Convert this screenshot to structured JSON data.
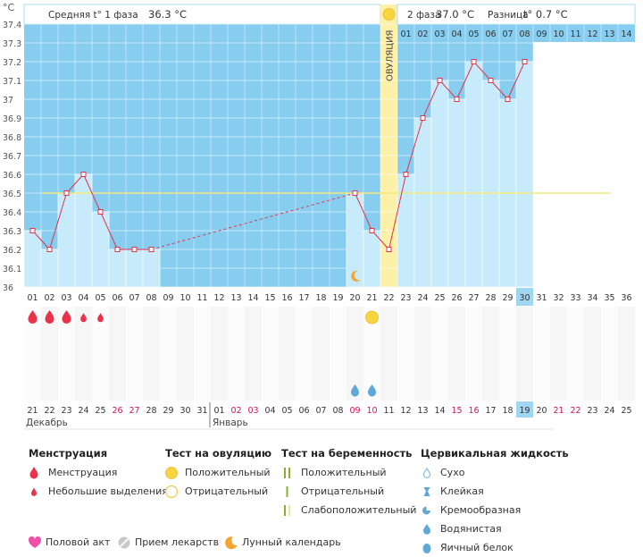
{
  "chart_data": {
    "type": "line",
    "y_unit": "°C",
    "ylim": [
      36,
      37.4
    ],
    "y_ticks": [
      "37.4",
      "37.3",
      "37.2",
      "37.1",
      "37",
      "36.9",
      "36.8",
      "36.7",
      "36.6",
      "36.5",
      "36.4",
      "36.3",
      "36.2",
      "36.1",
      "36"
    ],
    "phase1_label": "Средняя t° 1 фаза",
    "phase1_value": "36.3 °C",
    "phase2_label": "2 фаза",
    "phase2_value": "37.0 °C",
    "diff_label": "Разница",
    "diff_value": "t° 0.7 °C",
    "ovulation_label": "ОВУЛЯЦИЯ",
    "ovulation_day": 22,
    "cover_line": 36.5,
    "post_ov_days": [
      "01",
      "02",
      "03",
      "04",
      "05",
      "06",
      "07",
      "08",
      "09",
      "10",
      "11",
      "12",
      "13",
      "14"
    ],
    "cycle_days": [
      "01",
      "02",
      "03",
      "04",
      "05",
      "06",
      "07",
      "08",
      "09",
      "10",
      "11",
      "12",
      "13",
      "14",
      "15",
      "16",
      "17",
      "18",
      "19",
      "20",
      "21",
      "22",
      "23",
      "24",
      "25",
      "26",
      "27",
      "28",
      "29",
      "30",
      "31",
      "32",
      "33",
      "34",
      "35",
      "36"
    ],
    "highlight_cycle_day": "30",
    "temperatures": [
      {
        "day": 1,
        "value": 36.3
      },
      {
        "day": 2,
        "value": 36.2
      },
      {
        "day": 3,
        "value": 36.5
      },
      {
        "day": 4,
        "value": 36.6
      },
      {
        "day": 5,
        "value": 36.4
      },
      {
        "day": 6,
        "value": 36.2
      },
      {
        "day": 7,
        "value": 36.2
      },
      {
        "day": 8,
        "value": 36.2
      },
      {
        "day": 20,
        "value": 36.5
      },
      {
        "day": 21,
        "value": 36.3
      },
      {
        "day": 22,
        "value": 36.2
      },
      {
        "day": 23,
        "value": 36.6
      },
      {
        "day": 24,
        "value": 36.9
      },
      {
        "day": 25,
        "value": 37.1
      },
      {
        "day": 26,
        "value": 37.0
      },
      {
        "day": 27,
        "value": 37.2
      },
      {
        "day": 28,
        "value": 37.1
      },
      {
        "day": 29,
        "value": 37.0
      },
      {
        "day": 30,
        "value": 37.2
      }
    ],
    "moon_days": [
      20
    ],
    "menstruation": [
      {
        "day": 1,
        "kind": "heavy"
      },
      {
        "day": 2,
        "kind": "heavy"
      },
      {
        "day": 3,
        "kind": "heavy"
      },
      {
        "day": 4,
        "kind": "light"
      },
      {
        "day": 5,
        "kind": "light"
      }
    ],
    "ovulation_test_positive_days": [
      21
    ],
    "cervical_fluid": [
      {
        "day": 20,
        "kind": "watery"
      },
      {
        "day": 21,
        "kind": "watery"
      }
    ],
    "date_days": [
      "21",
      "22",
      "23",
      "24",
      "25",
      "26",
      "27",
      "28",
      "29",
      "30",
      "31",
      "01",
      "02",
      "03",
      "04",
      "05",
      "06",
      "07",
      "08",
      "09",
      "10",
      "11",
      "12",
      "13",
      "14",
      "15",
      "16",
      "17",
      "18",
      "19",
      "20",
      "21",
      "22",
      "23",
      "24",
      "25"
    ],
    "date_red": [
      5,
      6,
      12,
      13,
      19,
      20,
      25,
      26,
      31,
      32
    ],
    "highlight_date_index": 29,
    "month_labels": [
      "Декабрь",
      "Январь"
    ]
  },
  "legend": {
    "menstruation": {
      "title": "Менструация",
      "items": [
        "Менструация",
        "Небольшие выделения"
      ]
    },
    "ovulation_test": {
      "title": "Тест на овуляцию",
      "items": [
        "Положительный",
        "Отрицательный"
      ]
    },
    "pregnancy_test": {
      "title": "Тест на беременность",
      "items": [
        "Положительный",
        "Отрицательный",
        "Слабоположительный"
      ]
    },
    "cervical": {
      "title": "Цервикальная жидкость",
      "items": [
        "Сухо",
        "Клейкая",
        "Кремообразная",
        "Водянистая",
        "Яичный белок"
      ]
    },
    "bottom": [
      "Половой акт",
      "Прием лекарств",
      "Лунный календарь"
    ]
  },
  "colors": {
    "sky": "#87cdf0",
    "bar": "#c8ebfb",
    "ovulation": "#fdf0a8",
    "line": "#e0334a",
    "cover": "#f2ea7a",
    "highlight": "#9fd6f0",
    "red_text": "#d4145a"
  }
}
